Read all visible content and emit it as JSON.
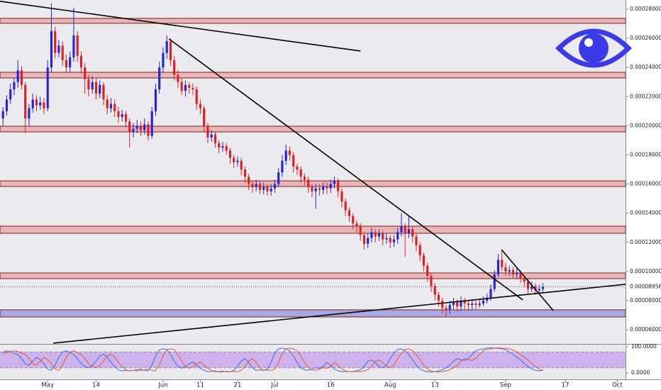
{
  "chart_data": {
    "type": "candlestick",
    "x": [
      -12,
      -11,
      -10,
      -9,
      -8,
      -7,
      -6,
      -5,
      -4,
      -3,
      -2,
      -1,
      0,
      1,
      2,
      3,
      4,
      5,
      6,
      7,
      8,
      9,
      10,
      11,
      12,
      13,
      14,
      15,
      16,
      17,
      18,
      19,
      20,
      21,
      22,
      23,
      24,
      25,
      26,
      27,
      28,
      29,
      30,
      31,
      32,
      33,
      34,
      35,
      36,
      37,
      38,
      39,
      40,
      41,
      42,
      43,
      44,
      45,
      46,
      47,
      48,
      49,
      50,
      51,
      52,
      53,
      54,
      55,
      56,
      57,
      58,
      59,
      60,
      61,
      62,
      63,
      64,
      65,
      66,
      67,
      68,
      69,
      70,
      71,
      72,
      73,
      74,
      75,
      76,
      77,
      78,
      79,
      80,
      81,
      82,
      83,
      84,
      85,
      86,
      87,
      88,
      89,
      90,
      91,
      92,
      93,
      94,
      95,
      96,
      97,
      98,
      99,
      100,
      101,
      102,
      103,
      104,
      105,
      106,
      107,
      108,
      109,
      110,
      111,
      112,
      113,
      114,
      115,
      116,
      117,
      118,
      119,
      120,
      121,
      122,
      123,
      124,
      125,
      126,
      127,
      128,
      129,
      130,
      131,
      132,
      133
    ],
    "open": [
      0.000205,
      0.00021,
      0.000218,
      0.000225,
      0.00023,
      0.000238,
      0.000228,
      0.000205,
      0.000212,
      0.000218,
      0.000214,
      0.000216,
      0.000212,
      0.00024,
      0.000265,
      0.00025,
      0.000255,
      0.000245,
      0.00024,
      0.000247,
      0.000262,
      0.000248,
      0.00024,
      0.000232,
      0.000225,
      0.00023,
      0.000222,
      0.000228,
      0.000218,
      0.000212,
      0.000215,
      0.00021,
      0.000206,
      0.000208,
      0.000203,
      0.000196,
      0.000198,
      0.0002,
      0.000197,
      0.000201,
      0.000193,
      0.00021,
      0.000225,
      0.00024,
      0.00025,
      0.000258,
      0.000245,
      0.000235,
      0.00023,
      0.000224,
      0.000228,
      0.000226,
      0.000225,
      0.000215,
      0.000212,
      0.0002,
      0.000192,
      0.000194,
      0.000188,
      0.000185,
      0.000186,
      0.000183,
      0.000178,
      0.000175,
      0.000176,
      0.00017,
      0.000165,
      0.00016,
      0.000158,
      0.00016,
      0.000156,
      0.000158,
      0.000155,
      0.000157,
      0.00016,
      0.000168,
      0.000176,
      0.000183,
      0.00018,
      0.000172,
      0.00017,
      0.000165,
      0.000163,
      0.000158,
      0.000155,
      0.000157,
      0.000156,
      0.000158,
      0.000157,
      0.00016,
      0.000162,
      0.000155,
      0.000148,
      0.000142,
      0.000138,
      0.000133,
      0.000131,
      0.000125,
      0.000119,
      0.000123,
      0.000127,
      0.000124,
      0.000126,
      0.000122,
      0.000123,
      0.00012,
      0.000122,
      0.000127,
      0.000131,
      0.000126,
      0.000129,
      0.000124,
      0.000118,
      0.000111,
      0.000104,
      9.7e-05,
      9e-05,
      8.4e-05,
      8e-05,
      7.5e-05,
      7.4e-05,
      7.7e-05,
      7.9e-05,
      7.6e-05,
      8e-05,
      7.8e-05,
      7.7e-05,
      7.8e-05,
      7.7e-05,
      7.8e-05,
      8e-05,
      8.2e-05,
      8.8e-05,
      9.8e-05,
      0.000108,
      0.000103,
      0.0001,
      0.000101,
      9.8e-05,
      9.9e-05,
      9.5e-05,
      9.3e-05,
      8.8e-05,
      9e-05,
      8.7e-05,
      8.8e-05
    ],
    "high": [
      0.000213,
      0.000221,
      0.000229,
      0.000233,
      0.000245,
      0.000241,
      0.00023,
      0.000215,
      0.000222,
      0.000221,
      0.00022,
      0.000219,
      0.000245,
      0.000284,
      0.000268,
      0.000259,
      0.000258,
      0.000249,
      0.000251,
      0.000281,
      0.000265,
      0.000251,
      0.000243,
      0.000235,
      0.000234,
      0.000233,
      0.000231,
      0.00023,
      0.000221,
      0.000219,
      0.000218,
      0.000213,
      0.000211,
      0.00021,
      0.000205,
      0.000202,
      0.000204,
      0.000203,
      0.000205,
      0.000203,
      0.000213,
      0.000229,
      0.000244,
      0.000254,
      0.000262,
      0.00026,
      0.000248,
      0.000238,
      0.000233,
      0.000231,
      0.00023,
      0.000229,
      0.000227,
      0.000218,
      0.000214,
      0.000202,
      0.000197,
      0.000196,
      0.00019,
      0.000189,
      0.000188,
      0.000185,
      0.00018,
      0.000179,
      0.000178,
      0.000172,
      0.000167,
      0.000162,
      0.000163,
      0.000162,
      0.000161,
      0.00016,
      0.00016,
      0.000163,
      0.000171,
      0.00018,
      0.000187,
      0.000186,
      0.000182,
      0.000174,
      0.000172,
      0.000167,
      0.000165,
      0.00016,
      0.00016,
      0.00016,
      0.000161,
      0.000161,
      0.000163,
      0.000165,
      0.000164,
      0.000157,
      0.00015,
      0.000144,
      0.00014,
      0.000135,
      0.000133,
      0.000127,
      0.000126,
      0.00013,
      0.000129,
      0.000129,
      0.000128,
      0.000126,
      0.000125,
      0.000125,
      0.00013,
      0.00014,
      0.000133,
      0.000138,
      0.000131,
      0.000126,
      0.00012,
      0.000113,
      0.000106,
      9.9e-05,
      9.2e-05,
      8.6e-05,
      8.2e-05,
      7.7e-05,
      8e-05,
      8.2e-05,
      8.1e-05,
      8.3e-05,
      8.2e-05,
      8e-05,
      8.1e-05,
      8e-05,
      8.1e-05,
      8.3e-05,
      8.5e-05,
      9.1e-05,
      0.000101,
      0.000112,
      0.000115,
      0.000106,
      0.000104,
      0.000103,
      0.000102,
      0.000101,
      9.7e-05,
      9.5e-05,
      9.3e-05,
      9.2e-05,
      9.1e-05,
      9.2e-05
    ],
    "low": [
      0.0002,
      0.000207,
      0.000215,
      0.000221,
      0.000226,
      0.000225,
      0.000195,
      0.0002,
      0.000209,
      0.00021,
      0.000211,
      0.000208,
      0.00021,
      0.000237,
      0.000246,
      0.000247,
      0.000241,
      0.000236,
      0.000237,
      0.000244,
      0.000244,
      0.000236,
      0.000222,
      0.00022,
      0.000222,
      0.000218,
      0.000219,
      0.000214,
      0.000208,
      0.000209,
      0.000206,
      0.000202,
      0.000203,
      0.000199,
      0.000185,
      0.000192,
      0.000195,
      0.000193,
      0.000194,
      0.00019,
      0.000191,
      0.000207,
      0.000222,
      0.000237,
      0.000246,
      0.000241,
      0.000231,
      0.000226,
      0.000221,
      0.00022,
      0.000222,
      0.000221,
      0.000211,
      0.000208,
      0.000196,
      0.000188,
      0.000189,
      0.000185,
      0.000181,
      0.000182,
      0.00018,
      0.000174,
      0.000171,
      0.000172,
      0.000166,
      0.000161,
      0.000156,
      0.000154,
      0.000155,
      0.000153,
      0.000153,
      0.000152,
      0.000152,
      0.000154,
      0.000158,
      0.000165,
      0.000173,
      0.000176,
      0.000168,
      0.000166,
      0.000161,
      0.000159,
      0.000154,
      0.000151,
      0.000143,
      0.000152,
      0.000153,
      0.000153,
      0.000154,
      0.000157,
      0.000151,
      0.000144,
      0.000138,
      0.000134,
      0.000129,
      0.000127,
      0.000121,
      0.000115,
      0.000116,
      0.00012,
      0.00012,
      0.000121,
      0.000118,
      0.000119,
      0.000116,
      0.000117,
      0.000119,
      0.000124,
      0.00011,
      0.000123,
      0.00012,
      0.000114,
      0.000107,
      0.0001,
      9.3e-05,
      8.6e-05,
      8e-05,
      7.6e-05,
      7.1e-05,
      6.9e-05,
      7.1e-05,
      7.4e-05,
      7.2e-05,
      7.3e-05,
      7.4e-05,
      7.3e-05,
      7.4e-05,
      7.4e-05,
      7.5e-05,
      7.6e-05,
      7.8e-05,
      8e-05,
      8.6e-05,
      9.6e-05,
      0.0001,
      9.7e-05,
      9.7e-05,
      9.5e-05,
      9.5e-05,
      9.2e-05,
      8.9e-05,
      8.5e-05,
      8.6e-05,
      8.4e-05,
      8.5e-05,
      8.6e-05
    ],
    "close": [
      0.00021,
      0.000218,
      0.000225,
      0.00023,
      0.000238,
      0.000228,
      0.000205,
      0.000212,
      0.000218,
      0.000214,
      0.000216,
      0.000212,
      0.00024,
      0.000265,
      0.00025,
      0.000255,
      0.000245,
      0.00024,
      0.000247,
      0.000262,
      0.000248,
      0.00024,
      0.000232,
      0.000225,
      0.00023,
      0.000222,
      0.000228,
      0.000218,
      0.000212,
      0.000215,
      0.00021,
      0.000206,
      0.000208,
      0.000203,
      0.000196,
      0.000198,
      0.0002,
      0.000197,
      0.000201,
      0.000193,
      0.00021,
      0.000225,
      0.00024,
      0.00025,
      0.000258,
      0.000245,
      0.000235,
      0.00023,
      0.000224,
      0.000228,
      0.000226,
      0.000225,
      0.000215,
      0.000212,
      0.0002,
      0.000192,
      0.000194,
      0.000188,
      0.000185,
      0.000186,
      0.000183,
      0.000178,
      0.000175,
      0.000176,
      0.00017,
      0.000165,
      0.00016,
      0.000158,
      0.00016,
      0.000156,
      0.000158,
      0.000155,
      0.000157,
      0.00016,
      0.000168,
      0.000176,
      0.000183,
      0.00018,
      0.000172,
      0.00017,
      0.000165,
      0.000163,
      0.000158,
      0.000155,
      0.000157,
      0.000156,
      0.000158,
      0.000157,
      0.00016,
      0.000162,
      0.000155,
      0.000148,
      0.000142,
      0.000138,
      0.000133,
      0.000131,
      0.000125,
      0.000119,
      0.000123,
      0.000127,
      0.000124,
      0.000126,
      0.000122,
      0.000123,
      0.00012,
      0.000122,
      0.000127,
      0.000131,
      0.000126,
      0.000129,
      0.000124,
      0.000118,
      0.000111,
      0.000104,
      9.7e-05,
      9e-05,
      8.4e-05,
      8e-05,
      7.5e-05,
      7.4e-05,
      7.7e-05,
      7.9e-05,
      7.6e-05,
      8e-05,
      7.8e-05,
      7.7e-05,
      7.8e-05,
      7.7e-05,
      7.8e-05,
      8e-05,
      8.2e-05,
      8.8e-05,
      9.8e-05,
      0.000108,
      0.000103,
      0.0001,
      0.000101,
      9.8e-05,
      9.9e-05,
      9.5e-05,
      9.3e-05,
      8.8e-05,
      9e-05,
      8.7e-05,
      8.8e-05,
      8.956e-05
    ],
    "up_color": "#2424d8",
    "down_color": "#e02020",
    "xlim": [
      -12.8,
      155.2
    ],
    "xticks": [
      {
        "value": 0,
        "label": "May"
      },
      {
        "value": 13,
        "label": "14"
      },
      {
        "value": 31,
        "label": "Jun"
      },
      {
        "value": 41,
        "label": "11"
      },
      {
        "value": 51,
        "label": "21"
      },
      {
        "value": 61,
        "label": "Jul"
      },
      {
        "value": 76,
        "label": "16"
      },
      {
        "value": 92,
        "label": "Aug"
      },
      {
        "value": 104,
        "label": "13"
      },
      {
        "value": 123,
        "label": "Sep"
      },
      {
        "value": 139,
        "label": "17"
      },
      {
        "value": 153,
        "label": "Oct"
      }
    ],
    "ylim": [
      5.03e-05,
      0.0002863
    ],
    "yticks": [
      {
        "value": 6e-05,
        "label": "0.00006000"
      },
      {
        "value": 8e-05,
        "label": "0.00008000"
      },
      {
        "value": 0.0001,
        "label": "0.00010000"
      },
      {
        "value": 0.00012,
        "label": "0.00012000"
      },
      {
        "value": 0.00014,
        "label": "0.00014000"
      },
      {
        "value": 0.00016,
        "label": "0.00016000"
      },
      {
        "value": 0.00018,
        "label": "0.00018000"
      },
      {
        "value": 0.0002,
        "label": "0.00020000"
      },
      {
        "value": 0.00022,
        "label": "0.00022000"
      },
      {
        "value": 0.00024,
        "label": "0.00024000"
      },
      {
        "value": 0.00026,
        "label": "0.00026000"
      },
      {
        "value": 0.00028,
        "label": "0.00028000"
      }
    ],
    "last_price": {
      "value": 8.956e-05,
      "label": "0.00008956"
    },
    "zones": [
      {
        "from": 0.0002703,
        "to": 0.0002737,
        "color": "#e8a0a0"
      },
      {
        "from": 0.0002328,
        "to": 0.0002367,
        "color": "#e8a0a0"
      },
      {
        "from": 0.0001958,
        "to": 0.0001997,
        "color": "#e8a0a0"
      },
      {
        "from": 0.0001583,
        "to": 0.0001622,
        "color": "#e8a0a0"
      },
      {
        "from": 0.0001262,
        "to": 0.0001311,
        "color": "#e8a0a0"
      },
      {
        "from": 9.51e-05,
        "to": 9.9e-05,
        "color": "#e8a0a0"
      },
      {
        "from": 6.88e-05,
        "to": 7.37e-05,
        "color": "#8c8ce0"
      }
    ],
    "trendlines": [
      {
        "x": [
          -12.8,
          84
        ],
        "y": [
          0.0002854,
          0.0002513
        ]
      },
      {
        "x": [
          32.6,
          127.6
        ],
        "y": [
          0.0002596,
          8.05e-05
        ]
      },
      {
        "x": [
          1.5,
          155.2
        ],
        "y": [
          5.08e-05,
          9.12e-05
        ]
      },
      {
        "x": [
          121.9,
          135.8
        ],
        "y": [
          0.000115,
          7.32e-05
        ]
      }
    ],
    "stoch": {
      "ylim": [
        0,
        100
      ],
      "yticks": [
        {
          "value": 100,
          "label": "100.0000"
        },
        {
          "value": 0,
          "label": "0.0000"
        }
      ],
      "bands": [
        80,
        20
      ],
      "series": [
        {
          "color": "#3c6ee0",
          "values": [
            80,
            85,
            82,
            75,
            70,
            55,
            35,
            30,
            45,
            60,
            50,
            35,
            15,
            10,
            30,
            60,
            80,
            85,
            78,
            70,
            55,
            35,
            25,
            20,
            28,
            45,
            65,
            72,
            60,
            40,
            25,
            12,
            8,
            10,
            8,
            10,
            12,
            15,
            10,
            8,
            30,
            65,
            88,
            92,
            90,
            70,
            45,
            25,
            18,
            25,
            35,
            42,
            30,
            18,
            10,
            5,
            5,
            8,
            4,
            5,
            6,
            5,
            10,
            25,
            45,
            55,
            40,
            20,
            10,
            12,
            10,
            15,
            40,
            75,
            92,
            95,
            92,
            85,
            65,
            40,
            20,
            12,
            10,
            15,
            20,
            18,
            25,
            40,
            30,
            15,
            8,
            5,
            6,
            5,
            5,
            8,
            12,
            25,
            45,
            50,
            40,
            25,
            20,
            30,
            55,
            75,
            90,
            92,
            85,
            70,
            50,
            30,
            15,
            8,
            5,
            4,
            5,
            8,
            12,
            20,
            30,
            45,
            55,
            50,
            48,
            55,
            70,
            85,
            90,
            92,
            95,
            96,
            95,
            94,
            92,
            88,
            80,
            70,
            60,
            50,
            35,
            25,
            15,
            10,
            8,
            10
          ]
        },
        {
          "color": "#e05a3a",
          "values": [
            75,
            78,
            80,
            85,
            82,
            75,
            70,
            55,
            35,
            30,
            45,
            60,
            50,
            35,
            15,
            10,
            30,
            60,
            80,
            85,
            78,
            70,
            55,
            35,
            25,
            20,
            28,
            45,
            65,
            72,
            60,
            40,
            25,
            12,
            8,
            10,
            8,
            10,
            12,
            15,
            10,
            8,
            30,
            65,
            88,
            92,
            90,
            70,
            45,
            25,
            18,
            25,
            35,
            42,
            30,
            18,
            10,
            5,
            5,
            8,
            4,
            5,
            6,
            5,
            10,
            25,
            45,
            55,
            40,
            20,
            10,
            12,
            10,
            15,
            40,
            75,
            92,
            95,
            92,
            85,
            65,
            40,
            20,
            12,
            10,
            15,
            20,
            18,
            25,
            40,
            30,
            15,
            8,
            5,
            6,
            5,
            5,
            8,
            12,
            25,
            45,
            50,
            40,
            25,
            20,
            30,
            55,
            75,
            90,
            92,
            85,
            70,
            50,
            30,
            15,
            8,
            5,
            4,
            5,
            8,
            12,
            20,
            30,
            45,
            55,
            50,
            48,
            55,
            70,
            85,
            90,
            92,
            95,
            96,
            95,
            94,
            92,
            88,
            80,
            70,
            60,
            50,
            35,
            25,
            15,
            10
          ]
        }
      ]
    }
  }
}
